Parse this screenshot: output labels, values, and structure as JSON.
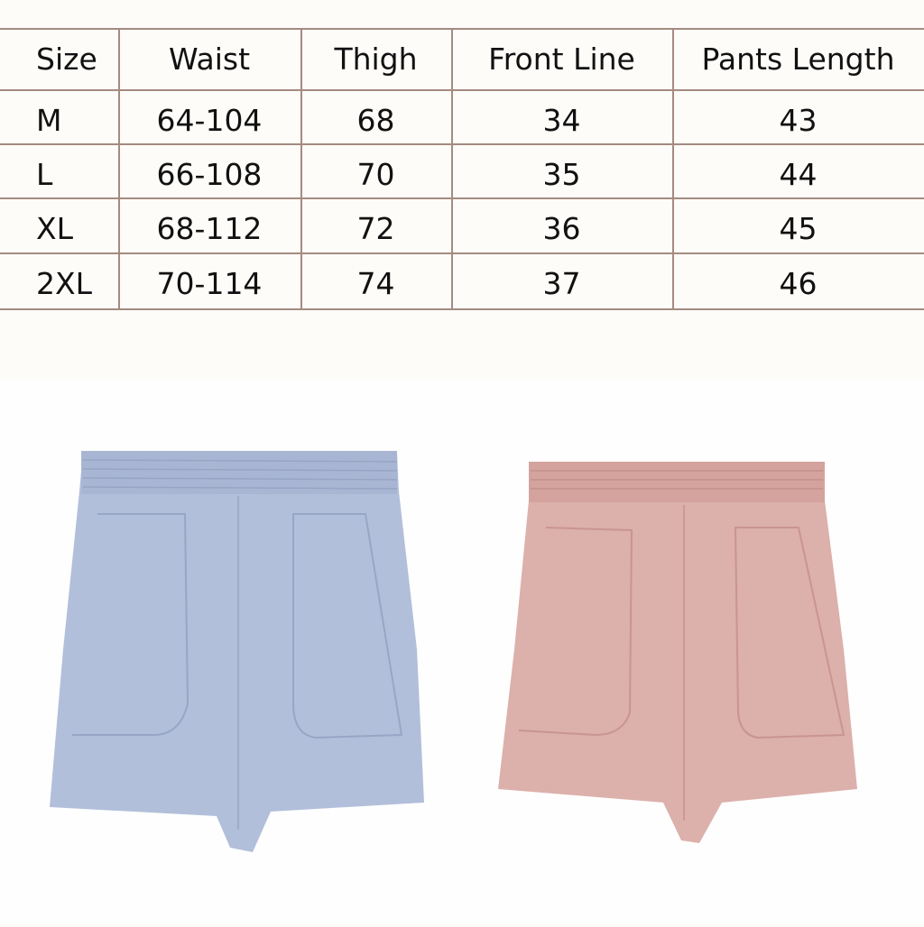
{
  "size_chart": {
    "headers": [
      "Size",
      "Waist",
      "Thigh",
      "Front Line",
      "Pants Length"
    ],
    "rows": [
      [
        "M",
        "64-104",
        "68",
        "34",
        "43"
      ],
      [
        "L",
        "66-108",
        "70",
        "35",
        "44"
      ],
      [
        "XL",
        "68-112",
        "72",
        "36",
        "45"
      ],
      [
        "2XL",
        "70-114",
        "74",
        "37",
        "46"
      ]
    ],
    "border_color": "#a58a80"
  },
  "product_photo": {
    "colors": [
      "#b2bfda",
      "#dcb0ab"
    ]
  }
}
